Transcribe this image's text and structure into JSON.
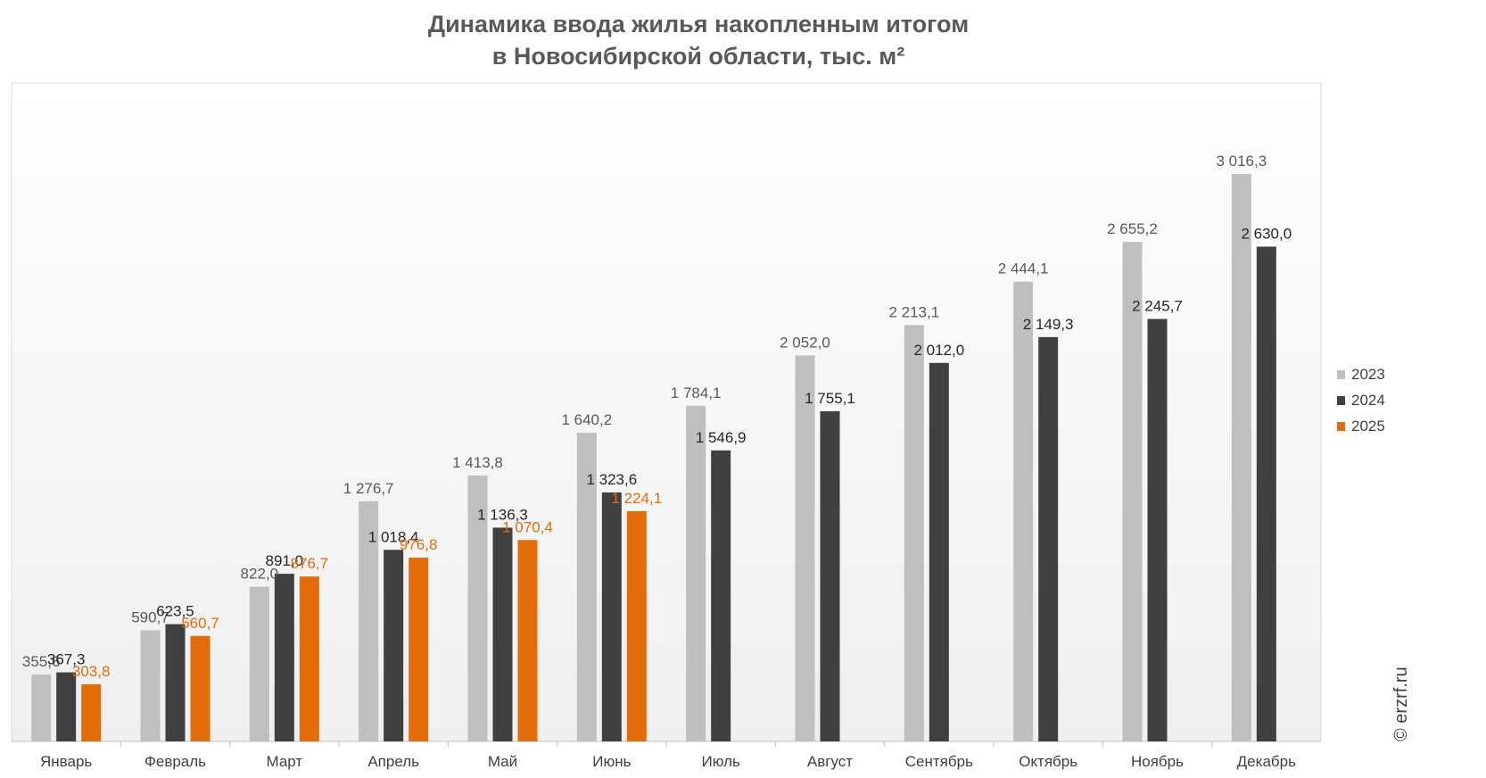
{
  "chart_data": {
    "type": "bar",
    "title_line1": "Динамика ввода жилья накопленным итогом",
    "title_line2": "в Новосибирской области, тыс. м²",
    "categories": [
      "Январь",
      "Февраль",
      "Март",
      "Апрель",
      "Май",
      "Июнь",
      "Июль",
      "Август",
      "Сентябрь",
      "Октябрь",
      "Ноябрь",
      "Декабрь"
    ],
    "series": [
      {
        "name": "2023",
        "color": "#bfbfbf",
        "label_color": "#595959",
        "values": [
          355.6,
          590.7,
          822.0,
          1276.7,
          1413.8,
          1640.2,
          1784.1,
          2052.0,
          2213.1,
          2444.1,
          2655.2,
          3016.3
        ],
        "labels": [
          "355,6",
          "590,7",
          "822,0",
          "1 276,7",
          "1 413,8",
          "1 640,2",
          "1 784,1",
          "2 052,0",
          "2 213,1",
          "2 444,1",
          "2 655,2",
          "3 016,3"
        ]
      },
      {
        "name": "2024",
        "color": "#404040",
        "label_color": "#262626",
        "values": [
          367.3,
          623.5,
          891.0,
          1018.4,
          1136.3,
          1323.6,
          1546.9,
          1755.1,
          2012.0,
          2149.3,
          2245.7,
          2630.0
        ],
        "labels": [
          "367,3",
          "623,5",
          "891,0",
          "1 018,4",
          "1 136,3",
          "1 323,6",
          "1 546,9",
          "1 755,1",
          "2 012,0",
          "2 149,3",
          "2 245,7",
          "2 630,0"
        ]
      },
      {
        "name": "2025",
        "color": "#e36c0a",
        "label_color": "#e36c0a",
        "values": [
          303.8,
          560.7,
          876.7,
          976.8,
          1070.4,
          1224.1,
          null,
          null,
          null,
          null,
          null,
          null
        ],
        "labels": [
          "303,8",
          "560,7",
          "876,7",
          "976,8",
          "1 070,4",
          "1 224,1",
          null,
          null,
          null,
          null,
          null,
          null
        ]
      }
    ],
    "ylim": [
      0,
      3500
    ],
    "legend_position": "right",
    "grid": false
  },
  "credit": "© erzrf.ru"
}
